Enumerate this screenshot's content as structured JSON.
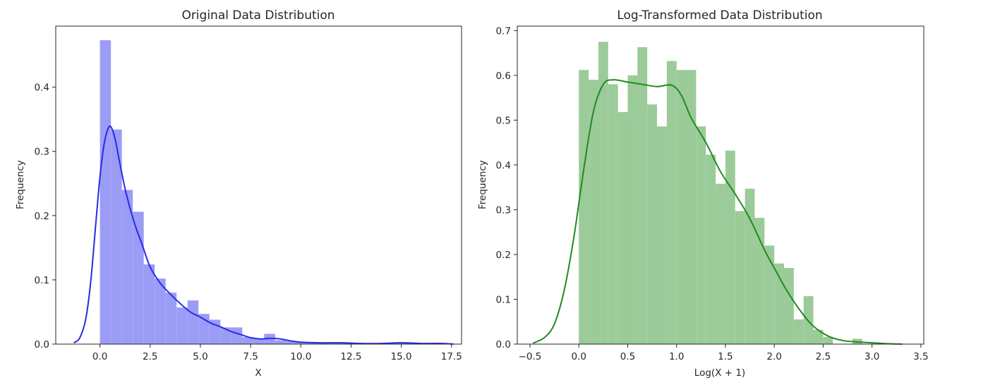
{
  "chart_data": [
    {
      "type": "bar",
      "title": "Original Data Distribution",
      "xlabel": "X",
      "ylabel": "Frequency",
      "xlim": [
        -2.2,
        18.0
      ],
      "ylim": [
        0,
        0.495
      ],
      "xticks": [
        0.0,
        2.5,
        5.0,
        7.5,
        10.0,
        12.5,
        15.0,
        17.5
      ],
      "xtick_labels": [
        "0.0",
        "2.5",
        "5.0",
        "7.5",
        "10.0",
        "12.5",
        "15.0",
        "17.5"
      ],
      "yticks": [
        0.0,
        0.1,
        0.2,
        0.3,
        0.4
      ],
      "ytick_labels": [
        "0.0",
        "0.1",
        "0.2",
        "0.3",
        "0.4"
      ],
      "bar_color": "#9b9cf6",
      "line_color": "#2a2ae6",
      "histogram": {
        "bin_start": 0.0,
        "bin_width": 0.545,
        "values": [
          0.473,
          0.334,
          0.24,
          0.206,
          0.124,
          0.102,
          0.08,
          0.057,
          0.068,
          0.047,
          0.038,
          0.026,
          0.026,
          0.011,
          0.009,
          0.016,
          0.006,
          0.005,
          0.003,
          0.002,
          0.001,
          0.001,
          0.002,
          0.001,
          0.001,
          0.001,
          0.001,
          0.001,
          0.001,
          0.001,
          0.001,
          0.001
        ]
      },
      "kde": {
        "x": [
          -1.3,
          -1.0,
          -0.7,
          -0.45,
          -0.2,
          0.0,
          0.2,
          0.4,
          0.55,
          0.75,
          1.0,
          1.3,
          1.7,
          2.1,
          2.5,
          3.0,
          3.5,
          4.0,
          4.5,
          5.0,
          5.5,
          6.0,
          6.5,
          7.0,
          7.5,
          8.0,
          8.5,
          9.0,
          9.5,
          10.0,
          11.0,
          12.0,
          13.0,
          14.0,
          15.0,
          16.0,
          17.0,
          17.6
        ],
        "y": [
          0.002,
          0.01,
          0.04,
          0.1,
          0.19,
          0.26,
          0.31,
          0.335,
          0.338,
          0.32,
          0.28,
          0.235,
          0.19,
          0.155,
          0.12,
          0.095,
          0.078,
          0.063,
          0.05,
          0.042,
          0.033,
          0.027,
          0.02,
          0.015,
          0.01,
          0.008,
          0.009,
          0.008,
          0.005,
          0.003,
          0.002,
          0.002,
          0.001,
          0.001,
          0.002,
          0.001,
          0.001,
          0.0
        ]
      }
    },
    {
      "type": "bar",
      "title": "Log-Transformed Data Distribution",
      "xlabel": "Log(X + 1)",
      "ylabel": "Frequency",
      "xlim": [
        -0.63,
        3.53
      ],
      "ylim": [
        0,
        0.71
      ],
      "xticks": [
        -0.5,
        0.0,
        0.5,
        1.0,
        1.5,
        2.0,
        2.5,
        3.0,
        3.5
      ],
      "xtick_labels": [
        "−0.5",
        "0.0",
        "0.5",
        "1.0",
        "1.5",
        "2.0",
        "2.5",
        "3.0",
        "3.5"
      ],
      "yticks": [
        0.0,
        0.1,
        0.2,
        0.3,
        0.4,
        0.5,
        0.6,
        0.7
      ],
      "ytick_labels": [
        "0.0",
        "0.1",
        "0.2",
        "0.3",
        "0.4",
        "0.5",
        "0.6",
        "0.7"
      ],
      "bar_color": "#9bcb98",
      "line_color": "#218a21",
      "histogram": {
        "bin_start": 0.0,
        "bin_width": 0.1,
        "values": [
          0.612,
          0.59,
          0.675,
          0.58,
          0.518,
          0.6,
          0.663,
          0.535,
          0.486,
          0.632,
          0.612,
          0.612,
          0.486,
          0.423,
          0.358,
          0.432,
          0.297,
          0.347,
          0.282,
          0.22,
          0.18,
          0.17,
          0.055,
          0.107,
          0.032,
          0.016,
          0.0,
          0.0,
          0.012,
          0.0,
          0.0
        ]
      },
      "kde": {
        "x": [
          -0.47,
          -0.35,
          -0.25,
          -0.15,
          -0.05,
          0.05,
          0.15,
          0.25,
          0.35,
          0.5,
          0.65,
          0.8,
          0.95,
          1.05,
          1.15,
          1.3,
          1.45,
          1.6,
          1.75,
          1.9,
          2.0,
          2.1,
          2.2,
          2.3,
          2.4,
          2.55,
          2.7,
          2.85,
          3.0,
          3.15,
          3.31
        ],
        "y": [
          0.002,
          0.015,
          0.045,
          0.12,
          0.24,
          0.39,
          0.52,
          0.58,
          0.59,
          0.585,
          0.58,
          0.575,
          0.578,
          0.555,
          0.505,
          0.45,
          0.385,
          0.335,
          0.28,
          0.21,
          0.17,
          0.13,
          0.095,
          0.065,
          0.04,
          0.018,
          0.008,
          0.005,
          0.003,
          0.001,
          0.0
        ]
      }
    }
  ]
}
